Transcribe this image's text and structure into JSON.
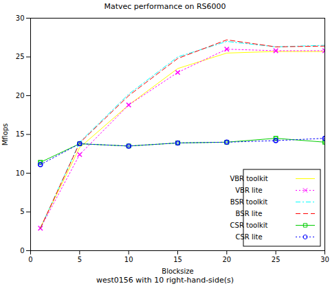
{
  "chart_data": {
    "type": "line",
    "title": "Matvec performance on RS6000",
    "subtitle": "west0156 with 10 right-hand-side(s)",
    "x_label": "Blocksize",
    "y_label": "Mflops",
    "x": [
      1,
      5,
      10,
      15,
      20,
      25,
      30
    ],
    "xlim": [
      0,
      30
    ],
    "xticks": [
      0,
      5,
      10,
      15,
      20,
      25,
      30
    ],
    "ylim": [
      0,
      30
    ],
    "yticks": [
      0,
      5,
      10,
      15,
      20,
      25,
      30
    ],
    "grid": false,
    "legend": "lower right",
    "series": [
      {
        "name": "VBR toolkit",
        "color": "#ffff00",
        "line_style": "solid",
        "marker": "none",
        "values": [
          3.0,
          13.3,
          18.8,
          23.5,
          25.5,
          25.7,
          25.7
        ]
      },
      {
        "name": "VBR lite",
        "color": "#ff00ff",
        "line_style": "dotted",
        "marker": "x",
        "values": [
          2.9,
          12.4,
          18.8,
          23.0,
          26.0,
          25.8,
          25.8
        ]
      },
      {
        "name": "BSR toolkit",
        "color": "#00ffff",
        "line_style": "dashdot",
        "marker": "none",
        "values": [
          2.9,
          14.0,
          20.2,
          25.0,
          27.0,
          26.3,
          26.5
        ]
      },
      {
        "name": "BSR lite",
        "color": "#ff0000",
        "line_style": "dashed",
        "marker": "none",
        "values": [
          2.9,
          13.9,
          20.0,
          24.8,
          27.2,
          26.3,
          26.4
        ]
      },
      {
        "name": "CSR toolkit",
        "color": "#00cc00",
        "line_style": "solid",
        "marker": "square",
        "values": [
          11.4,
          13.8,
          13.5,
          13.9,
          14.0,
          14.5,
          14.0
        ]
      },
      {
        "name": "CSR lite",
        "color": "#0000ff",
        "line_style": "dotted",
        "marker": "circle",
        "values": [
          11.1,
          13.8,
          13.5,
          13.9,
          14.0,
          14.2,
          14.5
        ]
      }
    ]
  }
}
